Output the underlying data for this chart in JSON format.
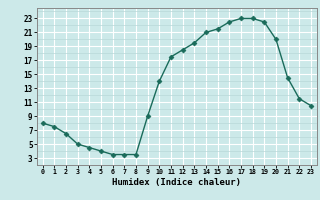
{
  "x": [
    0,
    1,
    2,
    3,
    4,
    5,
    6,
    7,
    8,
    9,
    10,
    11,
    12,
    13,
    14,
    15,
    16,
    17,
    18,
    19,
    20,
    21,
    22,
    23
  ],
  "y": [
    8,
    7.5,
    6.5,
    5,
    4.5,
    4,
    3.5,
    3.5,
    3.5,
    9,
    14,
    17.5,
    18.5,
    19.5,
    21,
    21.5,
    22.5,
    23,
    23,
    22.5,
    20,
    14.5,
    11.5,
    10.5
  ],
  "xlabel": "Humidex (Indice chaleur)",
  "xlim": [
    -0.5,
    23.5
  ],
  "ylim": [
    2,
    24.5
  ],
  "yticks": [
    3,
    5,
    7,
    9,
    11,
    13,
    15,
    17,
    19,
    21,
    23
  ],
  "xticks": [
    0,
    1,
    2,
    3,
    4,
    5,
    6,
    7,
    8,
    9,
    10,
    11,
    12,
    13,
    14,
    15,
    16,
    17,
    18,
    19,
    20,
    21,
    22,
    23
  ],
  "line_color": "#1a6b5a",
  "markersize": 2.5,
  "background_color": "#cce9e9",
  "grid_major_color": "#ffffff",
  "grid_minor_color": "#b8d8d8"
}
